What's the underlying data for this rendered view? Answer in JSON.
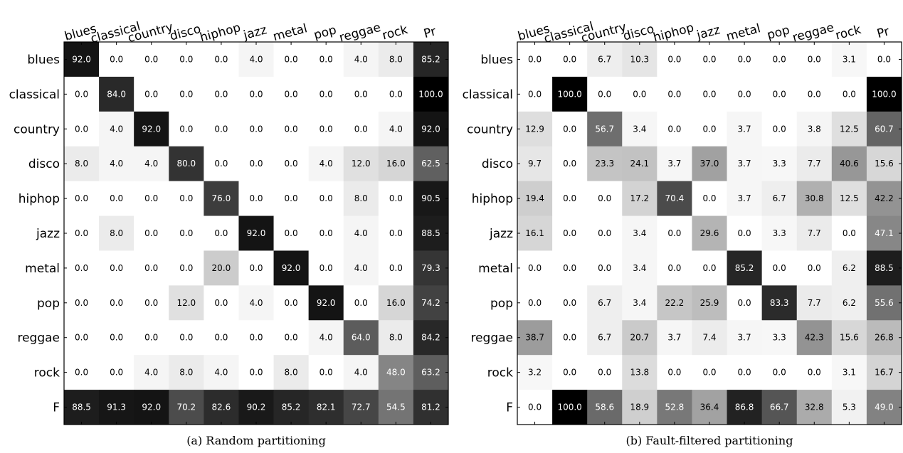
{
  "chart_data": [
    {
      "type": "heatmap",
      "caption": "(a) Random partitioning",
      "columns": [
        "blues",
        "classical",
        "country",
        "disco",
        "hiphop",
        "jazz",
        "metal",
        "pop",
        "reggae",
        "rock",
        "Pr"
      ],
      "rows": [
        "blues",
        "classical",
        "country",
        "disco",
        "hiphop",
        "jazz",
        "metal",
        "pop",
        "reggae",
        "rock",
        "F"
      ],
      "values": [
        [
          92.0,
          0.0,
          0.0,
          0.0,
          0.0,
          4.0,
          0.0,
          0.0,
          4.0,
          8.0,
          85.2
        ],
        [
          0.0,
          84.0,
          0.0,
          0.0,
          0.0,
          0.0,
          0.0,
          0.0,
          0.0,
          0.0,
          100.0
        ],
        [
          0.0,
          4.0,
          92.0,
          0.0,
          0.0,
          0.0,
          0.0,
          0.0,
          0.0,
          4.0,
          92.0
        ],
        [
          8.0,
          4.0,
          4.0,
          80.0,
          0.0,
          0.0,
          0.0,
          4.0,
          12.0,
          16.0,
          62.5
        ],
        [
          0.0,
          0.0,
          0.0,
          0.0,
          76.0,
          0.0,
          0.0,
          0.0,
          8.0,
          0.0,
          90.5
        ],
        [
          0.0,
          8.0,
          0.0,
          0.0,
          0.0,
          92.0,
          0.0,
          0.0,
          4.0,
          0.0,
          88.5
        ],
        [
          0.0,
          0.0,
          0.0,
          0.0,
          20.0,
          0.0,
          92.0,
          0.0,
          4.0,
          0.0,
          79.3
        ],
        [
          0.0,
          0.0,
          0.0,
          12.0,
          0.0,
          4.0,
          0.0,
          92.0,
          0.0,
          16.0,
          74.2
        ],
        [
          0.0,
          0.0,
          0.0,
          0.0,
          0.0,
          0.0,
          0.0,
          4.0,
          64.0,
          8.0,
          84.2
        ],
        [
          0.0,
          0.0,
          4.0,
          8.0,
          4.0,
          0.0,
          8.0,
          0.0,
          4.0,
          48.0,
          63.2
        ],
        [
          88.5,
          91.3,
          92.0,
          70.2,
          82.6,
          90.2,
          85.2,
          82.1,
          72.7,
          54.5,
          81.2
        ]
      ],
      "colormap": "gray_r",
      "vmin": 0,
      "vmax": 100
    },
    {
      "type": "heatmap",
      "caption": "(b) Fault-filtered partitioning",
      "columns": [
        "blues",
        "classical",
        "country",
        "disco",
        "hiphop",
        "jazz",
        "metal",
        "pop",
        "reggae",
        "rock",
        "Pr"
      ],
      "rows": [
        "blues",
        "classical",
        "country",
        "disco",
        "hiphop",
        "jazz",
        "metal",
        "pop",
        "reggae",
        "rock",
        "F"
      ],
      "values": [
        [
          0.0,
          0.0,
          6.7,
          10.3,
          0.0,
          0.0,
          0.0,
          0.0,
          0.0,
          3.1,
          0.0
        ],
        [
          0.0,
          100.0,
          0.0,
          0.0,
          0.0,
          0.0,
          0.0,
          0.0,
          0.0,
          0.0,
          100.0
        ],
        [
          12.9,
          0.0,
          56.7,
          3.4,
          0.0,
          0.0,
          3.7,
          0.0,
          3.8,
          12.5,
          60.7
        ],
        [
          9.7,
          0.0,
          23.3,
          24.1,
          3.7,
          37.0,
          3.7,
          3.3,
          7.7,
          40.6,
          15.6
        ],
        [
          19.4,
          0.0,
          0.0,
          17.2,
          70.4,
          0.0,
          3.7,
          6.7,
          30.8,
          12.5,
          42.2
        ],
        [
          16.1,
          0.0,
          0.0,
          3.4,
          0.0,
          29.6,
          0.0,
          3.3,
          7.7,
          0.0,
          47.1
        ],
        [
          0.0,
          0.0,
          0.0,
          3.4,
          0.0,
          0.0,
          85.2,
          0.0,
          0.0,
          6.2,
          88.5
        ],
        [
          0.0,
          0.0,
          6.7,
          3.4,
          22.2,
          25.9,
          0.0,
          83.3,
          7.7,
          6.2,
          55.6
        ],
        [
          38.7,
          0.0,
          6.7,
          20.7,
          3.7,
          7.4,
          3.7,
          3.3,
          42.3,
          15.6,
          26.8
        ],
        [
          3.2,
          0.0,
          0.0,
          13.8,
          0.0,
          0.0,
          0.0,
          0.0,
          0.0,
          3.1,
          16.7
        ],
        [
          0.0,
          100.0,
          58.6,
          18.9,
          52.8,
          36.4,
          86.8,
          66.7,
          32.8,
          5.3,
          49.0
        ]
      ],
      "colormap": "gray_r",
      "vmin": 0,
      "vmax": 100
    }
  ]
}
